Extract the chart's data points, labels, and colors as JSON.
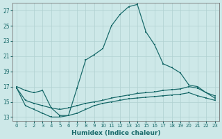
{
  "xlabel": "Humidex (Indice chaleur)",
  "bg_color": "#cde8e8",
  "grid_color": "#b0d0d0",
  "line_color": "#1a6b6b",
  "xlim": [
    -0.5,
    23.5
  ],
  "ylim": [
    12.5,
    28.0
  ],
  "yticks": [
    13,
    15,
    17,
    19,
    21,
    23,
    25,
    27
  ],
  "xticks": [
    0,
    1,
    2,
    3,
    4,
    5,
    6,
    7,
    8,
    9,
    10,
    11,
    12,
    13,
    14,
    15,
    16,
    17,
    18,
    19,
    20,
    21,
    22,
    23
  ],
  "main_x": [
    0,
    1,
    2,
    3,
    4,
    5,
    6,
    7,
    8,
    9,
    10,
    11,
    12,
    13,
    14,
    15,
    16,
    17,
    18,
    19,
    20,
    21,
    22,
    23
  ],
  "main_y": [
    17.0,
    16.5,
    16.2,
    16.5,
    14.2,
    13.2,
    13.2,
    16.8,
    20.5,
    21.2,
    22.0,
    25.0,
    26.5,
    27.5,
    27.8,
    24.2,
    22.5,
    20.0,
    19.5,
    18.8,
    17.2,
    17.0,
    16.2,
    15.5
  ],
  "upper_x": [
    0,
    1,
    2,
    3,
    4,
    5,
    6,
    7,
    8,
    9,
    10,
    11,
    12,
    13,
    14,
    15,
    16,
    17,
    18,
    19,
    20,
    21,
    22,
    23
  ],
  "upper_y": [
    16.8,
    15.2,
    14.8,
    14.5,
    14.2,
    14.0,
    14.2,
    14.5,
    14.8,
    15.0,
    15.2,
    15.5,
    15.7,
    15.9,
    16.1,
    16.2,
    16.3,
    16.5,
    16.6,
    16.7,
    17.0,
    16.8,
    16.2,
    15.8
  ],
  "lower_x": [
    0,
    1,
    2,
    3,
    4,
    5,
    6,
    7,
    8,
    9,
    10,
    11,
    12,
    13,
    14,
    15,
    16,
    17,
    18,
    19,
    20,
    21,
    22,
    23
  ],
  "lower_y": [
    16.8,
    14.5,
    14.0,
    13.5,
    13.0,
    13.0,
    13.2,
    13.5,
    14.0,
    14.5,
    14.8,
    15.0,
    15.2,
    15.4,
    15.5,
    15.6,
    15.7,
    15.8,
    15.9,
    16.0,
    16.2,
    15.8,
    15.5,
    15.2
  ]
}
